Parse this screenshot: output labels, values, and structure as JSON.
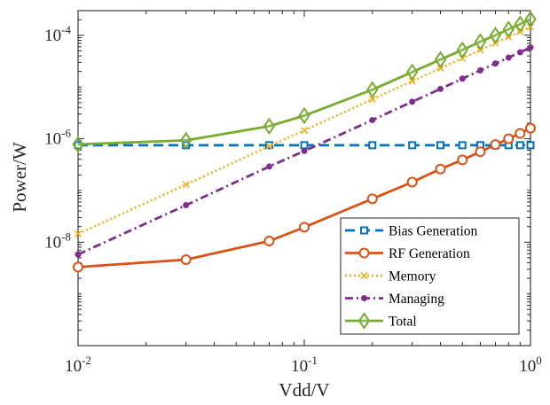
{
  "chart_data": {
    "type": "line",
    "title": "",
    "xlabel": "Vdd/V",
    "ylabel": "Power/W",
    "x_scale": "log",
    "y_scale": "log",
    "xlim": [
      0.01,
      1
    ],
    "ylim": [
      1e-10,
      0.0003
    ],
    "grid": false,
    "legend_position": "bottom-right",
    "x_ticks": [
      {
        "value": 0.01,
        "base": "10",
        "exp": "-2"
      },
      {
        "value": 0.1,
        "base": "10",
        "exp": "-1"
      },
      {
        "value": 1,
        "base": "10",
        "exp": "0"
      }
    ],
    "y_ticks": [
      {
        "value": 1e-08,
        "base": "10",
        "exp": "-8"
      },
      {
        "value": 1e-06,
        "base": "10",
        "exp": "-6"
      },
      {
        "value": 0.0001,
        "base": "10",
        "exp": "-4"
      }
    ],
    "series": [
      {
        "name": "Bias Generation",
        "color": "#0072BD",
        "line_style": "dashed",
        "marker": "square",
        "x": [
          0.01,
          0.03,
          0.07,
          0.1,
          0.2,
          0.3,
          0.4,
          0.5,
          0.6,
          0.7,
          0.8,
          0.9,
          1.0
        ],
        "y": [
          7.5e-07,
          7.5e-07,
          7.5e-07,
          7.5e-07,
          7.5e-07,
          7.5e-07,
          7.5e-07,
          7.5e-07,
          7.5e-07,
          7.5e-07,
          7.5e-07,
          7.5e-07,
          7.5e-07
        ]
      },
      {
        "name": "RF Generation",
        "color": "#D95319",
        "line_style": "solid",
        "marker": "circle",
        "x": [
          0.01,
          0.03,
          0.07,
          0.1,
          0.2,
          0.3,
          0.4,
          0.5,
          0.6,
          0.7,
          0.8,
          0.9,
          1.0
        ],
        "y": [
          3.3e-09,
          4.6e-09,
          1.05e-08,
          1.95e-08,
          6.9e-08,
          1.45e-07,
          2.6e-07,
          3.9e-07,
          5.6e-07,
          7.7e-07,
          1e-06,
          1.27e-06,
          1.6e-06
        ]
      },
      {
        "name": "Memory",
        "color": "#EDB120",
        "line_style": "dotted",
        "marker": "x",
        "x": [
          0.01,
          0.03,
          0.07,
          0.1,
          0.2,
          0.3,
          0.4,
          0.5,
          0.6,
          0.7,
          0.8,
          0.9,
          1.0
        ],
        "y": [
          1.45e-08,
          1.3e-07,
          7.2e-07,
          1.45e-06,
          5.8e-06,
          1.3e-05,
          2.3e-05,
          3.6e-05,
          5.2e-05,
          7.1e-05,
          9.3e-05,
          0.000117,
          0.000145
        ]
      },
      {
        "name": "Managing",
        "color": "#7E2F8E",
        "line_style": "dashdot",
        "marker": "dot",
        "x": [
          0.01,
          0.03,
          0.07,
          0.1,
          0.2,
          0.3,
          0.4,
          0.5,
          0.6,
          0.7,
          0.8,
          0.9,
          1.0
        ],
        "y": [
          5.8e-09,
          5.2e-08,
          2.9e-07,
          5.8e-07,
          2.3e-06,
          5.2e-06,
          9.2e-06,
          1.45e-05,
          2.1e-05,
          2.85e-05,
          3.7e-05,
          4.7e-05,
          5.8e-05
        ]
      },
      {
        "name": "Total",
        "color": "#77AC30",
        "line_style": "solid",
        "marker": "diamond",
        "x": [
          0.01,
          0.03,
          0.07,
          0.1,
          0.2,
          0.3,
          0.4,
          0.5,
          0.6,
          0.7,
          0.8,
          0.9,
          1.0
        ],
        "y": [
          7.8e-07,
          9.3e-07,
          1.75e-06,
          2.8e-06,
          8.9e-06,
          1.95e-05,
          3.4e-05,
          5.2e-05,
          7.5e-05,
          0.0001,
          0.000131,
          0.000165,
          0.000205
        ]
      }
    ]
  }
}
